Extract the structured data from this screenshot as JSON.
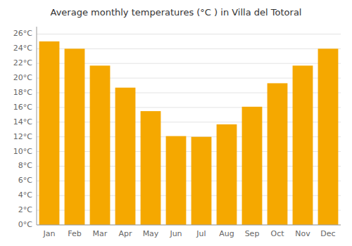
{
  "chart_data": {
    "type": "bar",
    "title": "Average monthly temperatures (°C ) in Villa del Totoral",
    "categories": [
      "Jan",
      "Feb",
      "Mar",
      "Apr",
      "May",
      "Jun",
      "Jul",
      "Aug",
      "Sep",
      "Oct",
      "Nov",
      "Dec"
    ],
    "values": [
      25.0,
      24.0,
      21.7,
      18.7,
      15.5,
      12.1,
      12.0,
      13.7,
      16.1,
      19.3,
      21.7,
      24.0
    ],
    "color": "#F5A800",
    "ylim": [
      0,
      27
    ],
    "yticks": [
      {
        "value": 0,
        "label": "0°C"
      },
      {
        "value": 2,
        "label": "2°C"
      },
      {
        "value": 4,
        "label": "4°C"
      },
      {
        "value": 6,
        "label": "6°C"
      },
      {
        "value": 8,
        "label": "8°C"
      },
      {
        "value": 10,
        "label": "10°C"
      },
      {
        "value": 12,
        "label": "12°C"
      },
      {
        "value": 14,
        "label": "14°C"
      },
      {
        "value": 16,
        "label": "16°C"
      },
      {
        "value": 18,
        "label": "18°C"
      },
      {
        "value": 20,
        "label": "20°C"
      },
      {
        "value": 22,
        "label": "22°C"
      },
      {
        "value": 24,
        "label": "24°C"
      },
      {
        "value": 26,
        "label": "26°C"
      }
    ],
    "grid": true
  }
}
